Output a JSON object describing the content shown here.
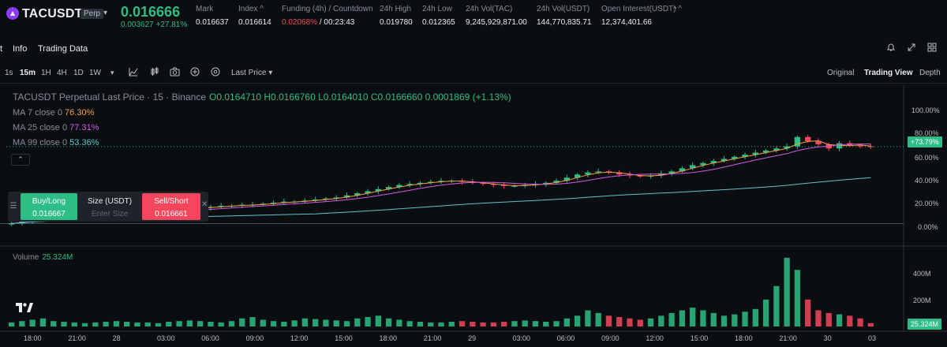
{
  "header": {
    "symbol": "TACUSDT",
    "badge": "Perp",
    "last_price": "0.016666",
    "change": "0.003627 +27.81%",
    "stats": [
      {
        "label": "Mark",
        "value": "0.016637"
      },
      {
        "label": "Index ^",
        "value": "0.016614"
      },
      {
        "label": "Funding (4h) / Countdown",
        "value_neg": "0.02068%",
        "value_sep": " / ",
        "value_rest": "00:23:43"
      },
      {
        "label": "24h High",
        "value": "0.019780"
      },
      {
        "label": "24h Low",
        "value": "0.012365"
      },
      {
        "label": "24h Vol(TAC)",
        "value": "9,245,929,871.00"
      },
      {
        "label": "24h Vol(USDT)",
        "value": "144,770,835.71"
      },
      {
        "label": "Open Interest(USDT) ^",
        "value": "12,374,401.66"
      }
    ],
    "collapse_glyph": "^"
  },
  "tabs": {
    "chart_fragment": "t",
    "info": "Info",
    "trading_data": "Trading Data"
  },
  "toolbar": {
    "timeframes": [
      "1s",
      "15m",
      "1H",
      "4H",
      "1D",
      "1W"
    ],
    "active_timeframe": "15m",
    "price_type": "Last Price",
    "views": [
      "Original",
      "Trading View",
      "Depth"
    ],
    "active_view": "Trading View"
  },
  "legend": {
    "title": "TACUSDT Perpetual Last Price · 15 · Binance",
    "ohlc": "O0.0164710 H0.0166760 L0.0164010 C0.0166660 0.0001869 (+1.13%)",
    "ma7_label": "MA 7 close 0",
    "ma7_value": "76.30%",
    "ma25_label": "MA 25 close 0",
    "ma25_value": "77.31%",
    "ma99_label": "MA 99 close 0",
    "ma99_value": "53.36%",
    "volume_label": "Volume",
    "volume_value": "25.324M"
  },
  "trade_widget": {
    "buy_label": "Buy/Long",
    "buy_price": "0.016667",
    "size_label": "Size (USDT)",
    "size_placeholder": "Enter Size",
    "sell_label": "Sell/Short",
    "sell_price": "0.016661"
  },
  "axis": {
    "price_ticks": [
      "100.00%",
      "80.00%",
      "60.00%",
      "40.00%",
      "20.00%",
      "0.00%"
    ],
    "current_tag": "+73.79%",
    "volume_ticks": [
      "400M",
      "200M"
    ],
    "volume_tag": "25.324M",
    "time_ticks": [
      "18:00",
      "21:00",
      "28",
      "03:00",
      "06:00",
      "09:00",
      "12:00",
      "15:00",
      "18:00",
      "21:00",
      "29",
      "03:00",
      "06:00",
      "09:00",
      "12:00",
      "15:00",
      "18:00",
      "21:00",
      "30",
      "03"
    ]
  },
  "chart_data": {
    "type": "candlestick",
    "y_unit": "% change",
    "ylim": [
      -5,
      110
    ],
    "current_value": 73.79,
    "volume_ylim": [
      0,
      550
    ],
    "volume_unit": "M",
    "up_color": "#2ebd85",
    "down_color": "#f6465d",
    "closes": [
      0,
      2,
      4,
      5,
      6,
      7,
      8,
      9,
      9,
      10,
      10,
      11,
      11,
      12,
      12,
      13,
      14,
      15,
      15,
      16,
      17,
      17,
      18,
      18,
      19,
      20,
      21,
      21,
      22,
      23,
      24,
      25,
      27,
      29,
      31,
      33,
      35,
      37,
      38,
      39,
      40,
      41,
      41,
      40,
      39,
      38,
      37,
      36,
      36,
      37,
      38,
      39,
      41,
      44,
      47,
      49,
      50,
      49,
      47,
      46,
      45,
      46,
      48,
      50,
      53,
      56,
      58,
      60,
      62,
      64,
      66,
      68,
      70,
      72,
      74,
      83,
      79,
      76,
      72,
      77,
      75,
      74,
      73.79
    ],
    "volumes": [
      30,
      40,
      50,
      60,
      40,
      35,
      30,
      25,
      30,
      35,
      40,
      35,
      30,
      30,
      25,
      35,
      40,
      45,
      40,
      35,
      30,
      40,
      60,
      70,
      50,
      40,
      35,
      45,
      60,
      55,
      50,
      45,
      40,
      60,
      70,
      80,
      60,
      50,
      40,
      35,
      30,
      30,
      35,
      40,
      35,
      30,
      30,
      35,
      40,
      45,
      40,
      35,
      40,
      60,
      80,
      120,
      100,
      80,
      70,
      60,
      50,
      60,
      80,
      100,
      120,
      140,
      120,
      100,
      80,
      90,
      110,
      130,
      200,
      300,
      510,
      420,
      200,
      120,
      100,
      90,
      80,
      60,
      25.324
    ],
    "ma7_color": "#f0a045",
    "ma25_color": "#d45ae6",
    "ma99_color": "#5ec3c6"
  }
}
